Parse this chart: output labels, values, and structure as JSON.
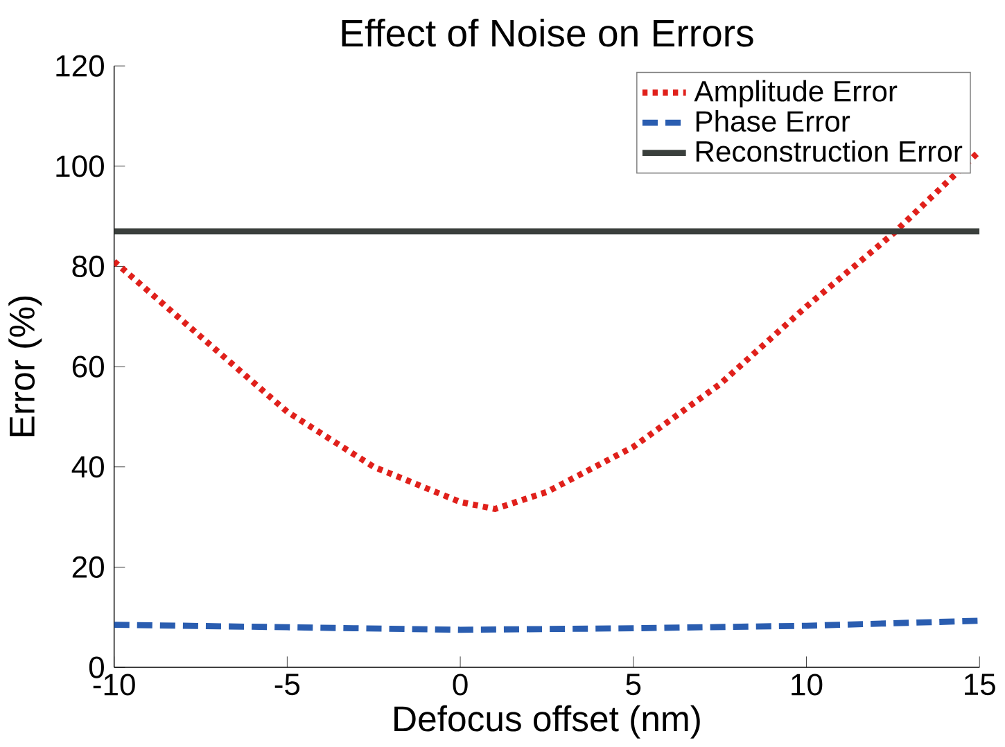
{
  "chart_data": {
    "type": "line",
    "title": "Effect of Noise on Errors",
    "xlabel": "Defocus offset (nm)",
    "ylabel": "Error (%)",
    "xlim": [
      -10,
      15
    ],
    "ylim": [
      0,
      120
    ],
    "xticks": [
      -10,
      -5,
      0,
      5,
      10,
      15
    ],
    "yticks": [
      0,
      20,
      40,
      60,
      80,
      100,
      120
    ],
    "grid": false,
    "legend": "top right",
    "series": [
      {
        "name": "Amplitude Error",
        "color": "#e0201b",
        "line_style": "dotted",
        "x": [
          -10,
          -7.5,
          -5,
          -2.5,
          0,
          1,
          2.5,
          5,
          7.5,
          10,
          12.5,
          15
        ],
        "values": [
          81,
          66,
          51,
          40,
          33,
          31.6,
          35,
          44,
          56.5,
          72,
          86.5,
          103
        ]
      },
      {
        "name": "Phase Error",
        "color": "#2a5db0",
        "line_style": "dashed",
        "x": [
          -10,
          -5,
          0,
          5,
          10,
          15
        ],
        "values": [
          8.5,
          8,
          7.5,
          7.8,
          8.3,
          9.3
        ]
      },
      {
        "name": "Reconstruction Error",
        "color": "#3a3f3c",
        "line_style": "solid",
        "x": [
          -10,
          15
        ],
        "values": [
          87,
          87
        ]
      }
    ]
  }
}
